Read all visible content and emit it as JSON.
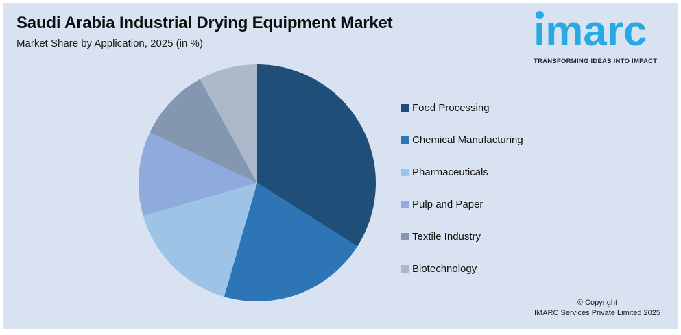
{
  "header": {
    "title": "Saudi Arabia Industrial Drying Equipment Market",
    "subtitle": "Market Share by Application, 2025 (in %)"
  },
  "logo": {
    "wordmark": "imarc",
    "tagline": "TRANSFORMING IDEAS INTO IMPACT",
    "brand_color": "#29A9E1",
    "tagline_color": "#1C2240"
  },
  "chart_data": {
    "type": "pie",
    "title": "Saudi Arabia Industrial Drying Equipment Market",
    "subtitle": "Market Share by Application, 2025 (in %)",
    "unit": "%",
    "start_angle_deg": 0,
    "direction": "clockwise",
    "legend_position": "right",
    "data_labels": false,
    "slices": [
      {
        "label": "Food Processing",
        "value": 34,
        "color": "#1F4E79"
      },
      {
        "label": "Chemical Manufacturing",
        "value": 20.5,
        "color": "#2E75B6"
      },
      {
        "label": "Pharmaceuticals",
        "value": 16,
        "color": "#9DC3E6"
      },
      {
        "label": "Pulp and Paper",
        "value": 11.5,
        "color": "#8FAADC"
      },
      {
        "label": "Textile Industry",
        "value": 10,
        "color": "#8497B0"
      },
      {
        "label": "Biotechnology",
        "value": 8,
        "color": "#ADB9CA"
      }
    ]
  },
  "footer": {
    "copyright_line1": "© Copyright",
    "copyright_line2": "IMARC Services Private Limited 2025"
  },
  "colors": {
    "panel_background": "#D9E2F1",
    "outer_background": "#FFFFFF",
    "title_text": "#0D0D0D"
  }
}
